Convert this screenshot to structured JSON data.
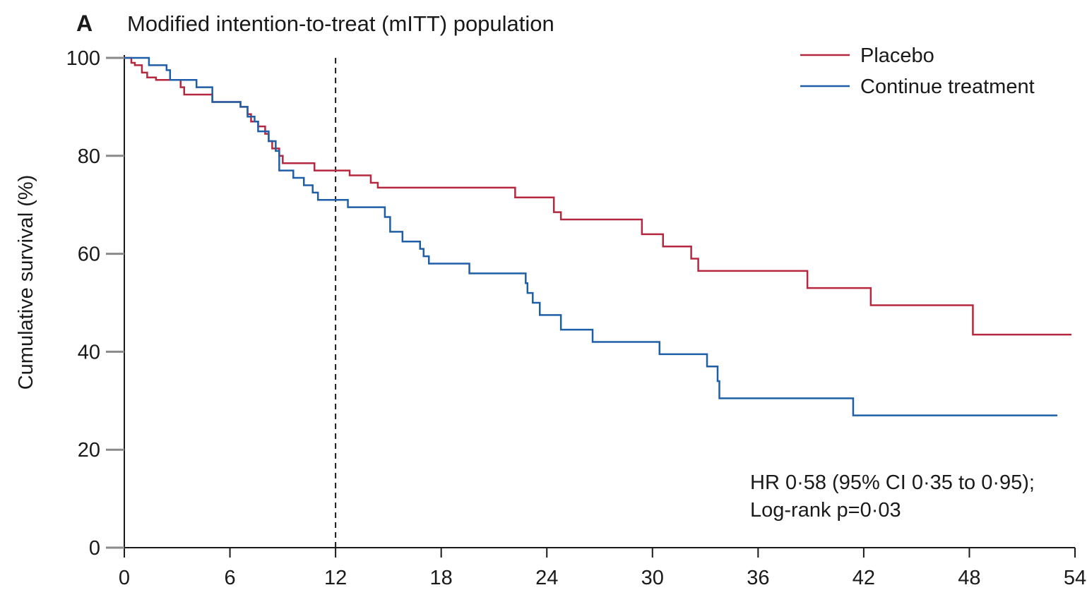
{
  "chart_data": {
    "type": "line",
    "step": true,
    "panel_label": "A",
    "title": "Modified intention-to-treat (mITT) population",
    "xlabel": "",
    "ylabel": "Cumulative survival (%)",
    "xlim": [
      0,
      54
    ],
    "ylim": [
      0,
      100
    ],
    "xticks": [
      0,
      6,
      12,
      18,
      24,
      30,
      36,
      42,
      48,
      54
    ],
    "yticks": [
      0,
      20,
      40,
      60,
      80,
      100
    ],
    "reference_line_x": 12,
    "legend_position": "top-right",
    "annotation_lines": [
      "HR 0·58 (95% CI 0·35 to 0·95);",
      "Log-rank p=0·03"
    ],
    "series": [
      {
        "name": "Placebo",
        "color": "#b5283f",
        "points": [
          [
            0,
            100
          ],
          [
            0.4,
            99
          ],
          [
            0.6,
            98.5
          ],
          [
            1.0,
            97
          ],
          [
            1.3,
            96
          ],
          [
            1.8,
            95.5
          ],
          [
            3.2,
            94
          ],
          [
            3.4,
            92.5
          ],
          [
            4.8,
            92.5
          ],
          [
            5.0,
            91
          ],
          [
            6.4,
            91
          ],
          [
            6.6,
            90
          ],
          [
            7.0,
            88.5
          ],
          [
            7.2,
            87
          ],
          [
            7.6,
            86
          ],
          [
            8.0,
            84.5
          ],
          [
            8.2,
            83
          ],
          [
            8.4,
            81.5
          ],
          [
            8.8,
            80
          ],
          [
            9.0,
            78.5
          ],
          [
            10.8,
            77
          ],
          [
            12.8,
            76
          ],
          [
            14.0,
            74.5
          ],
          [
            14.4,
            73.5
          ],
          [
            22.2,
            71.5
          ],
          [
            24.4,
            68.5
          ],
          [
            24.8,
            67
          ],
          [
            29.4,
            64
          ],
          [
            30.6,
            61.5
          ],
          [
            32.2,
            59
          ],
          [
            32.6,
            56.5
          ],
          [
            38.8,
            53
          ],
          [
            42.4,
            49.5
          ],
          [
            48.2,
            43.5
          ],
          [
            53.8,
            43.5
          ]
        ]
      },
      {
        "name": "Continue treatment",
        "color": "#1f5ea8",
        "points": [
          [
            0,
            100
          ],
          [
            1.4,
            98.5
          ],
          [
            2.4,
            97.5
          ],
          [
            2.6,
            95.5
          ],
          [
            4.1,
            94
          ],
          [
            5.0,
            91
          ],
          [
            6.6,
            90
          ],
          [
            7.0,
            88
          ],
          [
            7.4,
            87
          ],
          [
            7.6,
            85
          ],
          [
            8.2,
            83
          ],
          [
            8.6,
            81
          ],
          [
            8.8,
            77
          ],
          [
            9.6,
            75.5
          ],
          [
            10.2,
            74
          ],
          [
            10.7,
            72.5
          ],
          [
            11.0,
            71
          ],
          [
            12.7,
            69.5
          ],
          [
            14.8,
            67.5
          ],
          [
            15.1,
            64.5
          ],
          [
            15.8,
            62.5
          ],
          [
            16.8,
            61
          ],
          [
            17.0,
            59.5
          ],
          [
            17.3,
            58
          ],
          [
            19.6,
            56
          ],
          [
            22.8,
            54
          ],
          [
            22.9,
            52
          ],
          [
            23.2,
            50
          ],
          [
            23.6,
            47.5
          ],
          [
            24.8,
            44.5
          ],
          [
            26.6,
            42
          ],
          [
            30.4,
            39.5
          ],
          [
            33.1,
            37
          ],
          [
            33.7,
            34
          ],
          [
            33.8,
            30.5
          ],
          [
            41.4,
            27
          ],
          [
            53.0,
            27
          ]
        ]
      }
    ]
  }
}
